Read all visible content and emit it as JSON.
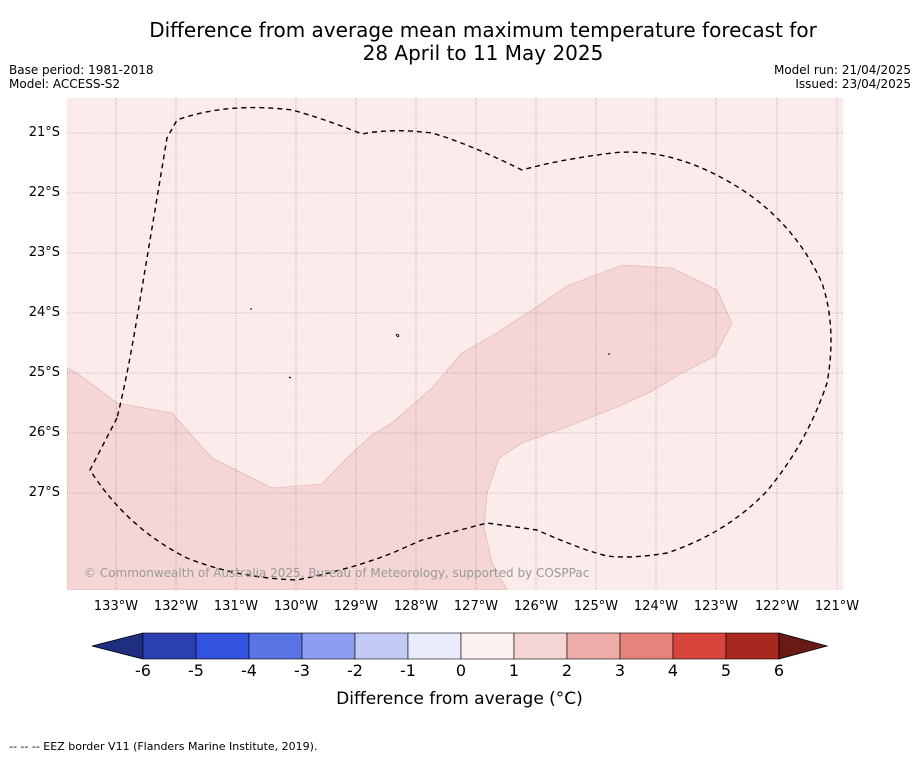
{
  "title": {
    "line1": "Difference from average mean maximum temperature forecast for",
    "line2": "28 April to 11 May 2025"
  },
  "meta_left": {
    "base_period": "Base period: 1981-2018",
    "model": "Model: ACCESS-S2"
  },
  "meta_right": {
    "model_run": "Model run: 21/04/2025",
    "issued": "Issued: 23/04/2025"
  },
  "map": {
    "latitude_labels": [
      "21°S",
      "22°S",
      "23°S",
      "24°S",
      "25°S",
      "26°S",
      "27°S"
    ],
    "longitude_labels": [
      "133°W",
      "132°W",
      "131°W",
      "130°W",
      "129°W",
      "128°W",
      "127°W",
      "126°W",
      "125°W",
      "124°W",
      "123°W",
      "122°W",
      "121°W"
    ],
    "copyright": "© Commonwealth of Australia 2025, Bureau of Meteorology, supported by COSPPac",
    "colors": {
      "background_0_to_1": "#fbebea",
      "band_1_to_2": "#f5d6d5",
      "eez_border": "#000000",
      "grid": "#8a7a8a"
    }
  },
  "colorbar": {
    "ticks": [
      "-6",
      "-5",
      "-4",
      "-3",
      "-2",
      "-1",
      "0",
      "1",
      "2",
      "3",
      "4",
      "5",
      "6"
    ],
    "colors": [
      "#1f2e80",
      "#2b3fb3",
      "#3352de",
      "#5a74e6",
      "#8c9ef0",
      "#c3cbf5",
      "#e9ecfb",
      "#fdf1ef",
      "#f5d6d5",
      "#eeaca8",
      "#e6837c",
      "#d7453d",
      "#a8271f",
      "#6a1a14"
    ],
    "label": "Difference from average (°C)"
  },
  "footnote": "-- -- -- EEZ border V11 (Flanders Marine Institute, 2019)."
}
